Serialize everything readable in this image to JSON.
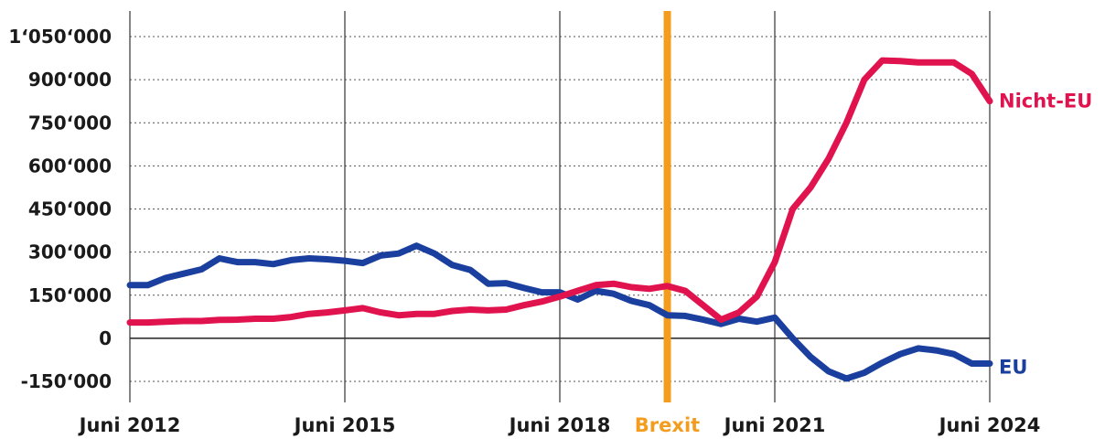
{
  "chart_data": {
    "type": "line",
    "title": "",
    "xlabel": "",
    "ylabel": "",
    "xlim": [
      2012.5,
      2024.5
    ],
    "ylim": [
      -180000,
      1080000
    ],
    "y_ticks": [
      {
        "value": 1050000,
        "label": "1‘050‘000"
      },
      {
        "value": 900000,
        "label": "900‘000"
      },
      {
        "value": 750000,
        "label": "750‘000"
      },
      {
        "value": 600000,
        "label": "600‘000"
      },
      {
        "value": 450000,
        "label": "450‘000"
      },
      {
        "value": 300000,
        "label": "300‘000"
      },
      {
        "value": 150000,
        "label": "150‘000"
      },
      {
        "value": 0,
        "label": "0"
      },
      {
        "value": -150000,
        "label": "-150‘000"
      }
    ],
    "x_ticks": [
      {
        "value": 2012.5,
        "label": "Juni 2012"
      },
      {
        "value": 2015.5,
        "label": "Juni 2015"
      },
      {
        "value": 2018.5,
        "label": "Juni 2018"
      },
      {
        "value": 2021.5,
        "label": "Juni 2021"
      },
      {
        "value": 2024.5,
        "label": "Juni 2024"
      }
    ],
    "grid": {
      "horizontal": "dotted",
      "vertical": "solid"
    },
    "markers": [
      {
        "label": "Brexit",
        "x": 2020.0,
        "color": "#f39c1e"
      }
    ],
    "x": [
      2012.5,
      2012.75,
      2013.0,
      2013.25,
      2013.5,
      2013.75,
      2014.0,
      2014.25,
      2014.5,
      2014.75,
      2015.0,
      2015.25,
      2015.5,
      2015.75,
      2016.0,
      2016.25,
      2016.5,
      2016.75,
      2017.0,
      2017.25,
      2017.5,
      2017.75,
      2018.0,
      2018.25,
      2018.5,
      2018.75,
      2019.0,
      2019.25,
      2019.5,
      2019.75,
      2020.0,
      2020.25,
      2020.5,
      2020.75,
      2021.0,
      2021.25,
      2021.5,
      2021.75,
      2022.0,
      2022.25,
      2022.5,
      2022.75,
      2023.0,
      2023.25,
      2023.5,
      2023.75,
      2024.0,
      2024.25,
      2024.5
    ],
    "series": [
      {
        "name": "Nicht-EU",
        "color": "#e0134f",
        "values": [
          55000,
          55000,
          58000,
          60000,
          60000,
          64000,
          65000,
          68000,
          68000,
          74000,
          85000,
          90000,
          97000,
          105000,
          90000,
          80000,
          85000,
          85000,
          95000,
          100000,
          97000,
          100000,
          115000,
          128000,
          145000,
          165000,
          185000,
          190000,
          178000,
          172000,
          182000,
          165000,
          115000,
          65000,
          90000,
          145000,
          265000,
          450000,
          525000,
          625000,
          750000,
          900000,
          967000,
          965000,
          960000,
          960000,
          960000,
          920000,
          825000
        ]
      },
      {
        "name": "EU",
        "color": "#1a3f9e",
        "values": [
          185000,
          185000,
          210000,
          225000,
          240000,
          278000,
          265000,
          265000,
          258000,
          272000,
          278000,
          275000,
          270000,
          262000,
          288000,
          295000,
          322000,
          295000,
          255000,
          238000,
          190000,
          192000,
          175000,
          160000,
          160000,
          135000,
          165000,
          155000,
          130000,
          115000,
          80000,
          78000,
          65000,
          50000,
          68000,
          58000,
          72000,
          0,
          -65000,
          -115000,
          -140000,
          -120000,
          -85000,
          -55000,
          -35000,
          -42000,
          -55000,
          -88000,
          -88000
        ]
      }
    ]
  }
}
